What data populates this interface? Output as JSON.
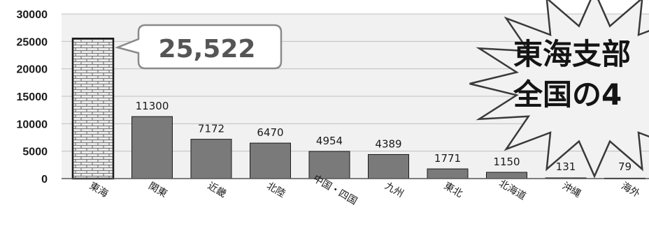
{
  "chart_data": {
    "type": "bar",
    "categories": [
      "東海",
      "関東",
      "近畿",
      "北陸",
      "中国・四国",
      "九州",
      "東北",
      "北海道",
      "沖縄",
      "海外"
    ],
    "values": [
      25522,
      11300,
      7172,
      6470,
      4954,
      4389,
      1771,
      1150,
      131,
      79
    ],
    "data_labels": [
      "",
      "11300",
      "7172",
      "6470",
      "4954",
      "4389",
      "1771",
      "1150",
      "131",
      "79"
    ],
    "yticks": [
      "0",
      "5000",
      "10000",
      "15000",
      "20000",
      "25000",
      "30000"
    ],
    "ylim": [
      0,
      30000
    ],
    "grid": true,
    "highlight_category": "東海",
    "callout_label": "25,522",
    "burst_lines": [
      "東海支部",
      "全国の4"
    ],
    "colors": {
      "bar": "#7a7a7a",
      "highlight_bar": "#e8e8e8",
      "grid": "#bfbfbf",
      "plot_bg": "#f1f1f1",
      "burst_fill": "#f2f2f2"
    }
  }
}
